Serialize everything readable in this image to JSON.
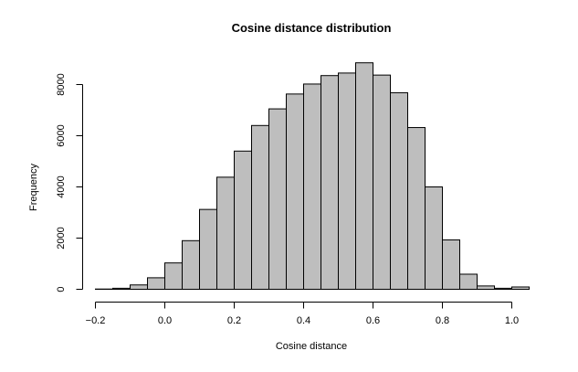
{
  "chart_data": {
    "type": "bar",
    "title": "Cosine distance distribution",
    "xlabel": "Cosine distance",
    "ylabel": "Frequency",
    "bin_width": 0.05,
    "x_range": [
      -0.2,
      1.05
    ],
    "ylim": [
      0,
      8800
    ],
    "x_ticks": [
      -0.2,
      0.0,
      0.2,
      0.4,
      0.6,
      0.8,
      1.0
    ],
    "x_tick_labels": [
      "−0.2",
      "0.0",
      "0.2",
      "0.4",
      "0.6",
      "0.8",
      "1.0"
    ],
    "y_ticks": [
      0,
      2000,
      4000,
      6000,
      8000
    ],
    "y_tick_labels": [
      "0",
      "2000",
      "4000",
      "6000",
      "8000"
    ],
    "bins": [
      {
        "start": -0.2,
        "end": -0.15,
        "count": 10
      },
      {
        "start": -0.15,
        "end": -0.1,
        "count": 40
      },
      {
        "start": -0.1,
        "end": -0.05,
        "count": 170
      },
      {
        "start": -0.05,
        "end": 0.0,
        "count": 450
      },
      {
        "start": 0.0,
        "end": 0.05,
        "count": 1030
      },
      {
        "start": 0.05,
        "end": 0.1,
        "count": 1900
      },
      {
        "start": 0.1,
        "end": 0.15,
        "count": 3120
      },
      {
        "start": 0.15,
        "end": 0.2,
        "count": 4380
      },
      {
        "start": 0.2,
        "end": 0.25,
        "count": 5400
      },
      {
        "start": 0.25,
        "end": 0.3,
        "count": 6400
      },
      {
        "start": 0.3,
        "end": 0.35,
        "count": 7050
      },
      {
        "start": 0.35,
        "end": 0.4,
        "count": 7630
      },
      {
        "start": 0.4,
        "end": 0.45,
        "count": 8020
      },
      {
        "start": 0.45,
        "end": 0.5,
        "count": 8350
      },
      {
        "start": 0.5,
        "end": 0.55,
        "count": 8450
      },
      {
        "start": 0.55,
        "end": 0.6,
        "count": 8850
      },
      {
        "start": 0.6,
        "end": 0.65,
        "count": 8370
      },
      {
        "start": 0.65,
        "end": 0.7,
        "count": 7680
      },
      {
        "start": 0.7,
        "end": 0.75,
        "count": 6320
      },
      {
        "start": 0.75,
        "end": 0.8,
        "count": 4000
      },
      {
        "start": 0.8,
        "end": 0.85,
        "count": 1930
      },
      {
        "start": 0.85,
        "end": 0.9,
        "count": 590
      },
      {
        "start": 0.9,
        "end": 0.95,
        "count": 130
      },
      {
        "start": 0.95,
        "end": 1.0,
        "count": 40
      },
      {
        "start": 1.0,
        "end": 1.05,
        "count": 90
      }
    ]
  }
}
